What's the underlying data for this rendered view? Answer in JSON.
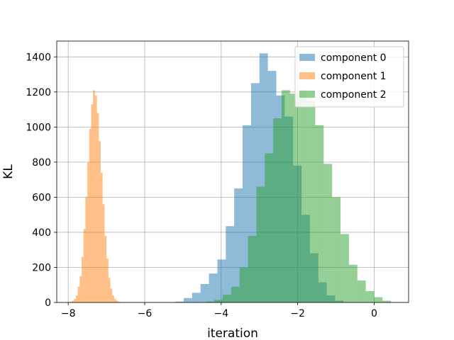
{
  "chart_data": {
    "type": "bar",
    "subtype": "histogram",
    "title": "",
    "xlabel": "iteration",
    "ylabel": "KL",
    "xlim": [
      -8.3,
      0.9
    ],
    "ylim": [
      0,
      1490
    ],
    "xticks": [
      -8,
      -6,
      -4,
      -2,
      0
    ],
    "xtick_labels": [
      "−8",
      "−6",
      "−4",
      "−2",
      "0"
    ],
    "yticks": [
      0,
      200,
      400,
      600,
      800,
      1000,
      1200,
      1400
    ],
    "ytick_labels": [
      "0",
      "200",
      "400",
      "600",
      "800",
      "1000",
      "1200",
      "1400"
    ],
    "grid": true,
    "legend_position": "top-right",
    "series": [
      {
        "name": "component 0",
        "color": "#1f77b4",
        "bin_start": -5.2,
        "bin_width": 0.22,
        "counts": [
          5,
          25,
          55,
          105,
          165,
          245,
          435,
          650,
          1010,
          1250,
          1420,
          1320,
          1180,
          1060,
          780,
          500,
          280,
          115,
          40,
          10
        ]
      },
      {
        "name": "component 1",
        "color": "#ff7f0e",
        "bin_start": -8.0,
        "bin_width": 0.05,
        "counts": [
          2,
          5,
          10,
          20,
          40,
          90,
          150,
          260,
          420,
          600,
          800,
          990,
          1130,
          1210,
          1180,
          1080,
          920,
          740,
          560,
          380,
          250,
          140,
          80,
          40,
          20,
          10,
          5,
          2
        ]
      },
      {
        "name": "component 2",
        "color": "#2ca02c",
        "bin_start": -4.4,
        "bin_width": 0.22,
        "counts": [
          5,
          15,
          45,
          90,
          200,
          380,
          660,
          850,
          1050,
          1210,
          1190,
          1210,
          1150,
          1010,
          790,
          600,
          390,
          215,
          125,
          65,
          30,
          10
        ]
      }
    ]
  }
}
